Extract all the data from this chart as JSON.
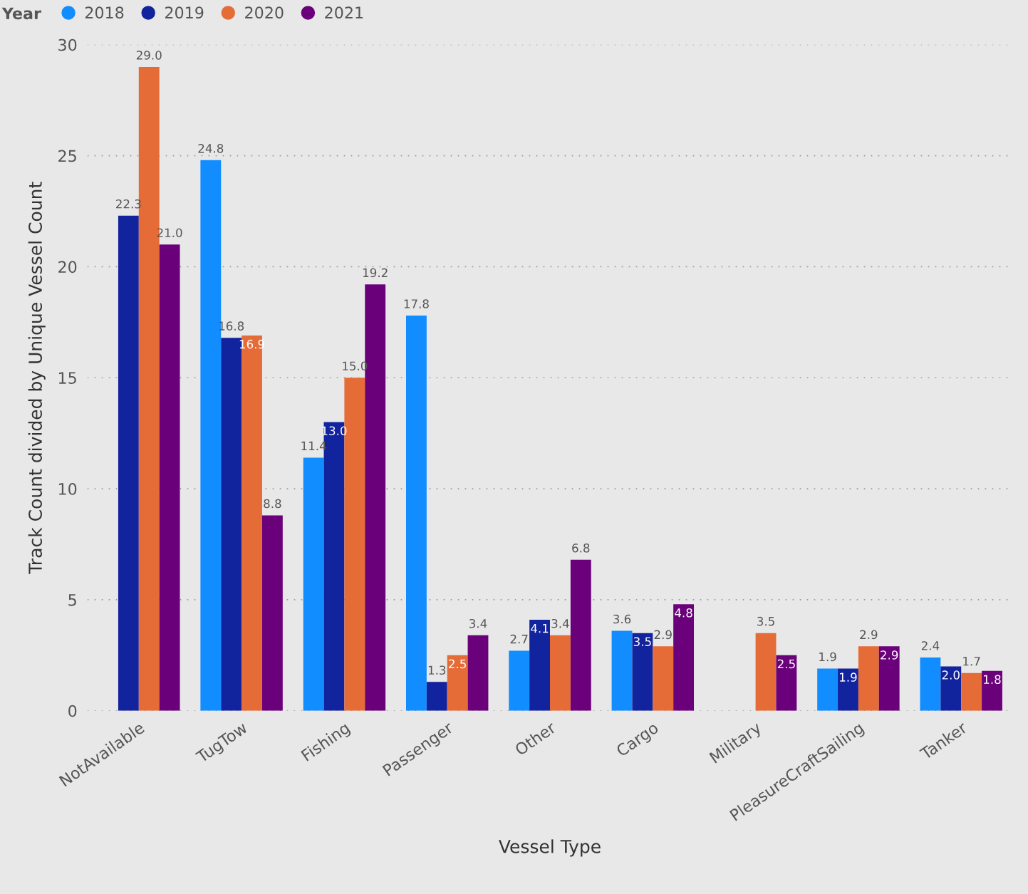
{
  "chart_data": {
    "type": "bar",
    "xlabel": "Vessel Type",
    "ylabel": "Track Count divided by Unique Vessel Count",
    "legend_title": "Year",
    "legend": "top left",
    "categories": [
      "NotAvailable",
      "TugTow",
      "Fishing",
      "Passenger",
      "Other",
      "Cargo",
      "Military",
      "PleasureCraftSailing",
      "Tanker"
    ],
    "series": [
      {
        "name": "2018",
        "color": "#118dff",
        "values": [
          null,
          24.8,
          11.4,
          17.8,
          2.7,
          3.6,
          null,
          1.9,
          2.4
        ]
      },
      {
        "name": "2019",
        "color": "#12239e",
        "values": [
          22.3,
          16.8,
          13.0,
          1.3,
          4.1,
          3.5,
          null,
          1.9,
          2.0
        ]
      },
      {
        "name": "2020",
        "color": "#e66c37",
        "values": [
          29.0,
          16.9,
          15.0,
          2.5,
          3.4,
          2.9,
          3.5,
          2.9,
          1.7
        ]
      },
      {
        "name": "2021",
        "color": "#6b007b",
        "values": [
          21.0,
          8.8,
          19.2,
          3.4,
          6.8,
          4.8,
          2.5,
          2.9,
          1.8
        ]
      }
    ],
    "ylim": [
      0,
      30
    ],
    "yticks": [
      0,
      5,
      10,
      15,
      20,
      25,
      30
    ],
    "grid": "y",
    "value_labels": [
      [
        null,
        "24.8",
        "11.4",
        "17.8",
        "2.7",
        "3.6",
        null,
        "1.9",
        "2.4"
      ],
      [
        "22.3",
        "16.8",
        "13.0",
        "1.3",
        "4.1",
        "3.5",
        null,
        "1.9",
        "2.0"
      ],
      [
        "29.0",
        "16.9",
        "15.0",
        "2.5",
        "3.4",
        "2.9",
        "3.5",
        "2.9",
        "1.7"
      ],
      [
        "21.0",
        "8.8",
        "19.2",
        "3.4",
        "6.8",
        "4.8",
        "2.5",
        "2.9",
        "1.8"
      ]
    ]
  }
}
